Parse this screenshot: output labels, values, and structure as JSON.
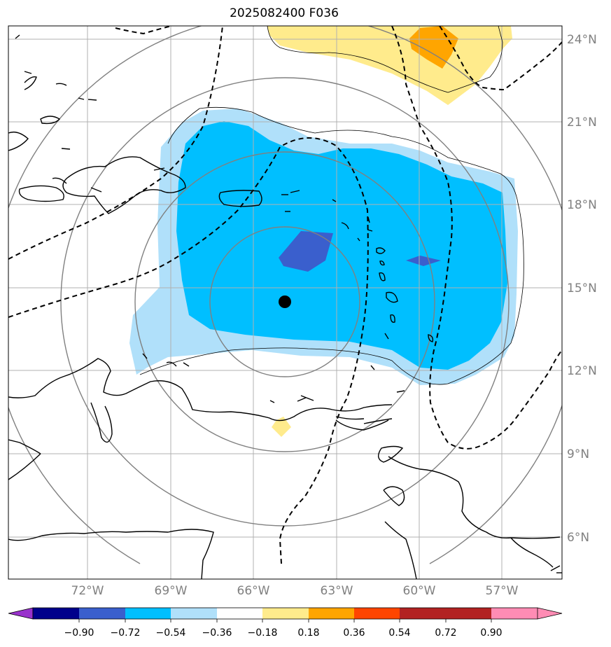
{
  "title": "2025082400 F036",
  "longitude_labels": [
    "72°W",
    "69°W",
    "66°W",
    "63°W",
    "60°W",
    "57°W"
  ],
  "latitude_labels": [
    "24°N",
    "21°N",
    "18°N",
    "15°N",
    "12°N",
    "9°N",
    "6°N"
  ],
  "colorbar": {
    "tick_labels": [
      "−0.90",
      "−0.72",
      "−0.54",
      "−0.36",
      "−0.18",
      "0.18",
      "0.36",
      "0.54",
      "0.72",
      "0.90"
    ],
    "colors": [
      "#9932cc",
      "#00008b",
      "#3a5fcd",
      "#00bfff",
      "#b0e0fa",
      "#ffffff",
      "#ffeb8c",
      "#ffa500",
      "#ff4500",
      "#b22222",
      "#ff8cb4"
    ]
  },
  "storm_center": {
    "lon": -64.9,
    "lat": 14.5
  }
}
